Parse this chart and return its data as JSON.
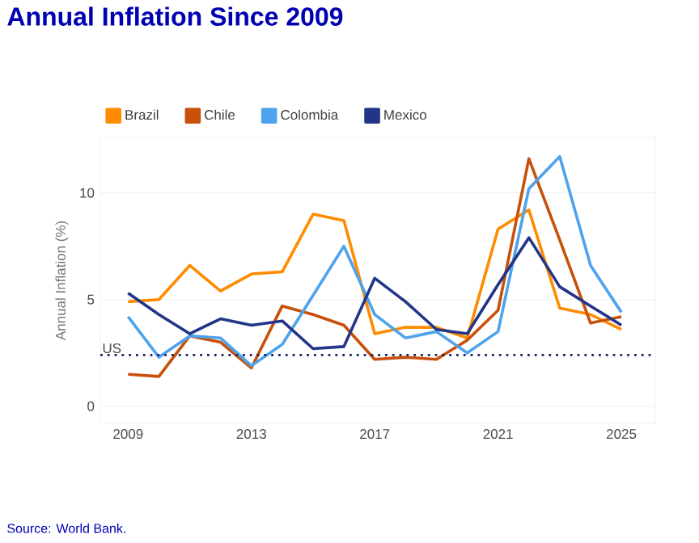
{
  "chart_data": {
    "type": "line",
    "title": "Annual Inflation Since 2009",
    "ylabel": "Annual Inflation (%)",
    "x": [
      2009,
      2010,
      2011,
      2012,
      2013,
      2014,
      2015,
      2016,
      2017,
      2018,
      2019,
      2020,
      2021,
      2022,
      2023,
      2024,
      2025
    ],
    "series": [
      {
        "name": "Brazil",
        "color": "#ff8c00",
        "values": [
          4.9,
          5.0,
          6.6,
          5.4,
          6.2,
          6.3,
          9.0,
          8.7,
          3.4,
          3.7,
          3.7,
          3.2,
          8.3,
          9.2,
          4.6,
          4.3,
          3.6
        ]
      },
      {
        "name": "Chile",
        "color": "#c8500a",
        "values": [
          1.5,
          1.4,
          3.3,
          3.0,
          1.8,
          4.7,
          4.3,
          3.8,
          2.2,
          2.3,
          2.2,
          3.1,
          4.5,
          11.6,
          7.8,
          3.9,
          4.2
        ]
      },
      {
        "name": "Colombia",
        "color": "#4ea3ec",
        "values": [
          4.2,
          2.3,
          3.3,
          3.2,
          1.9,
          2.9,
          5.2,
          7.5,
          4.3,
          3.2,
          3.5,
          2.5,
          3.5,
          10.2,
          11.7,
          6.6,
          4.4
        ]
      },
      {
        "name": "Mexico",
        "color": "#233588",
        "values": [
          5.3,
          4.3,
          3.4,
          4.1,
          3.8,
          4.0,
          2.7,
          2.8,
          6.0,
          4.9,
          3.6,
          3.4,
          5.7,
          7.9,
          5.6,
          4.7,
          3.8
        ]
      }
    ],
    "xlim": [
      2008.1,
      2026.1
    ],
    "xticks": [
      2009,
      2013,
      2017,
      2021,
      2025
    ],
    "ylim": [
      -0.8,
      12.6
    ],
    "yticks": [
      0,
      5,
      10
    ],
    "ref_lines": [
      {
        "axis": "y",
        "value": 2.4,
        "label": "US",
        "color": "#1a1f5e",
        "line_style": "dotted"
      }
    ],
    "grid": "y",
    "legend": "top",
    "marker": "none",
    "line_style": "solid",
    "annotations": [
      "Source: World Bank."
    ]
  }
}
